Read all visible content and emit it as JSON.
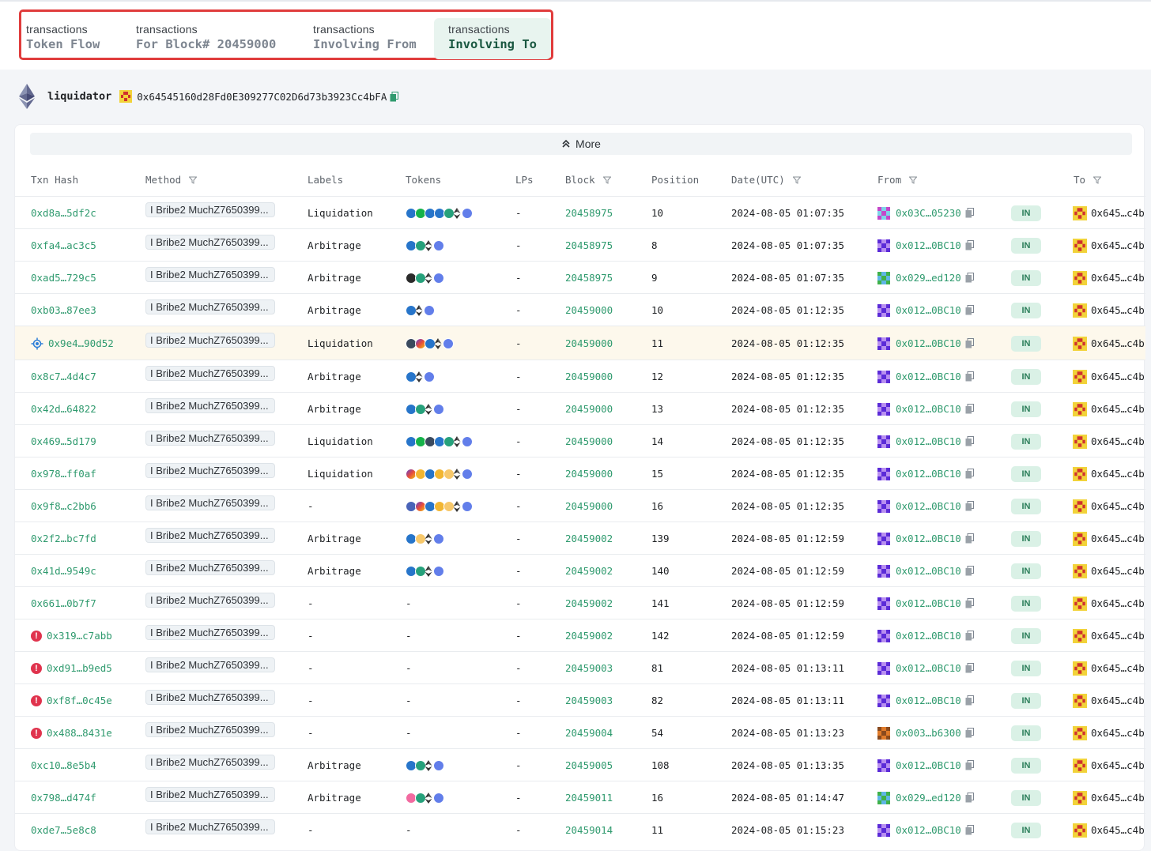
{
  "tabs": [
    {
      "line1": "transactions",
      "line2": "Token Flow"
    },
    {
      "line1": "transactions",
      "line2": "For Block# 20459000"
    },
    {
      "line1": "transactions",
      "line2": "Involving From"
    },
    {
      "line1": "transactions",
      "line2": "Involving To",
      "active": true
    }
  ],
  "account": {
    "label": "liquidator",
    "address": "0x64545160d28Fd0E309277C02D6d73b3923Cc4bFA",
    "chain_icon": "ethereum-icon"
  },
  "more_label": "More",
  "columns": [
    "Txn Hash",
    "Method",
    "Labels",
    "Tokens",
    "LPs",
    "Block",
    "Position",
    "Date(UTC)",
    "From",
    "To"
  ],
  "direction_label": "IN",
  "to_value": "0x645…c4b",
  "colors": {
    "accent_green": "#2f9a6e",
    "highlight_red": "#e03c3c",
    "alert_red": "#e0334d"
  },
  "rows": [
    {
      "hash": "0xd8a…5df2c",
      "method": "I Bribe2 MuchZ7650399...",
      "label": "Liquidation",
      "tokens": [
        "usdc",
        "green2",
        "usdc",
        "usdc",
        "usdt",
        "eth",
        "weth"
      ],
      "lps": "-",
      "block": "20458975",
      "position": "10",
      "date": "2024-08-05 01:07:35",
      "from": "0x03C…05230",
      "from_icon": "pink",
      "status": ""
    },
    {
      "hash": "0xfa4…ac3c5",
      "method": "I Bribe2 MuchZ7650399...",
      "label": "Arbitrage",
      "tokens": [
        "usdc",
        "usdt",
        "eth",
        "weth"
      ],
      "lps": "-",
      "block": "20458975",
      "position": "8",
      "date": "2024-08-05 01:07:35",
      "from": "0x012…0BC10",
      "from_icon": "purple",
      "status": ""
    },
    {
      "hash": "0xad5…729c5",
      "method": "I Bribe2 MuchZ7650399...",
      "label": "Arbitrage",
      "tokens": [
        "crv",
        "usdt",
        "eth",
        "weth"
      ],
      "lps": "-",
      "block": "20458975",
      "position": "9",
      "date": "2024-08-05 01:07:35",
      "from": "0x029…ed120",
      "from_icon": "green",
      "status": ""
    },
    {
      "hash": "0xb03…87ee3",
      "method": "I Bribe2 MuchZ7650399...",
      "label": "Arbitrage",
      "tokens": [
        "usdc",
        "eth",
        "weth"
      ],
      "lps": "-",
      "block": "20459000",
      "position": "10",
      "date": "2024-08-05 01:12:35",
      "from": "0x012…0BC10",
      "from_icon": "purple",
      "status": ""
    },
    {
      "hash": "0x9e4…90d52",
      "method": "I Bribe2 MuchZ7650399...",
      "label": "Liquidation",
      "tokens": [
        "euro",
        "multi",
        "usdc",
        "eth",
        "weth"
      ],
      "lps": "-",
      "block": "20459000",
      "position": "11",
      "date": "2024-08-05 01:12:35",
      "from": "0x012…0BC10",
      "from_icon": "purple",
      "status": "cross",
      "highlight": true
    },
    {
      "hash": "0x8c7…4d4c7",
      "method": "I Bribe2 MuchZ7650399...",
      "label": "Arbitrage",
      "tokens": [
        "usdc",
        "eth",
        "weth"
      ],
      "lps": "-",
      "block": "20459000",
      "position": "12",
      "date": "2024-08-05 01:12:35",
      "from": "0x012…0BC10",
      "from_icon": "purple",
      "status": ""
    },
    {
      "hash": "0x42d…64822",
      "method": "I Bribe2 MuchZ7650399...",
      "label": "Arbitrage",
      "tokens": [
        "usdc",
        "usdt",
        "eth",
        "weth"
      ],
      "lps": "-",
      "block": "20459000",
      "position": "13",
      "date": "2024-08-05 01:12:35",
      "from": "0x012…0BC10",
      "from_icon": "purple",
      "status": ""
    },
    {
      "hash": "0x469…5d179",
      "method": "I Bribe2 MuchZ7650399...",
      "label": "Liquidation",
      "tokens": [
        "usdc",
        "green2",
        "euro",
        "usdc",
        "usdt",
        "eth",
        "weth"
      ],
      "lps": "-",
      "block": "20459000",
      "position": "14",
      "date": "2024-08-05 01:12:35",
      "from": "0x012…0BC10",
      "from_icon": "purple",
      "status": ""
    },
    {
      "hash": "0x978…ff0af",
      "method": "I Bribe2 MuchZ7650399...",
      "label": "Liquidation",
      "tokens": [
        "multi",
        "gold",
        "usdc",
        "gold",
        "gold2",
        "eth",
        "weth"
      ],
      "lps": "-",
      "block": "20459000",
      "position": "15",
      "date": "2024-08-05 01:12:35",
      "from": "0x012…0BC10",
      "from_icon": "purple",
      "status": ""
    },
    {
      "hash": "0x9f8…c2bb6",
      "method": "I Bribe2 MuchZ7650399...",
      "label": "-",
      "tokens": [
        "blue2",
        "multi",
        "usdc",
        "gold",
        "gold2",
        "eth",
        "weth"
      ],
      "lps": "-",
      "block": "20459000",
      "position": "16",
      "date": "2024-08-05 01:12:35",
      "from": "0x012…0BC10",
      "from_icon": "purple",
      "status": ""
    },
    {
      "hash": "0x2f2…bc7fd",
      "method": "I Bribe2 MuchZ7650399...",
      "label": "Arbitrage",
      "tokens": [
        "usdc",
        "gold2",
        "eth",
        "weth"
      ],
      "lps": "-",
      "block": "20459002",
      "position": "139",
      "date": "2024-08-05 01:12:59",
      "from": "0x012…0BC10",
      "from_icon": "purple",
      "status": ""
    },
    {
      "hash": "0x41d…9549c",
      "method": "I Bribe2 MuchZ7650399...",
      "label": "Arbitrage",
      "tokens": [
        "usdc",
        "usdt",
        "eth",
        "weth"
      ],
      "lps": "-",
      "block": "20459002",
      "position": "140",
      "date": "2024-08-05 01:12:59",
      "from": "0x012…0BC10",
      "from_icon": "purple",
      "status": ""
    },
    {
      "hash": "0x661…0b7f7",
      "method": "I Bribe2 MuchZ7650399...",
      "label": "-",
      "tokens": [],
      "tokens_text": "-",
      "lps": "-",
      "block": "20459002",
      "position": "141",
      "date": "2024-08-05 01:12:59",
      "from": "0x012…0BC10",
      "from_icon": "purple",
      "status": ""
    },
    {
      "hash": "0x319…c7abb",
      "method": "I Bribe2 MuchZ7650399...",
      "label": "-",
      "tokens": [],
      "tokens_text": "-",
      "lps": "-",
      "block": "20459002",
      "position": "142",
      "date": "2024-08-05 01:12:59",
      "from": "0x012…0BC10",
      "from_icon": "purple",
      "status": "error"
    },
    {
      "hash": "0xd91…b9ed5",
      "method": "I Bribe2 MuchZ7650399...",
      "label": "-",
      "tokens": [],
      "tokens_text": "-",
      "lps": "-",
      "block": "20459003",
      "position": "81",
      "date": "2024-08-05 01:13:11",
      "from": "0x012…0BC10",
      "from_icon": "purple",
      "status": "error"
    },
    {
      "hash": "0xf8f…0c45e",
      "method": "I Bribe2 MuchZ7650399...",
      "label": "-",
      "tokens": [],
      "tokens_text": "-",
      "lps": "-",
      "block": "20459003",
      "position": "82",
      "date": "2024-08-05 01:13:11",
      "from": "0x012…0BC10",
      "from_icon": "purple",
      "status": "error"
    },
    {
      "hash": "0x488…8431e",
      "method": "I Bribe2 MuchZ7650399...",
      "label": "-",
      "tokens": [],
      "tokens_text": "-",
      "lps": "-",
      "block": "20459004",
      "position": "54",
      "date": "2024-08-05 01:13:23",
      "from": "0x003…b6300",
      "from_icon": "brown",
      "status": "error"
    },
    {
      "hash": "0xc10…8e5b4",
      "method": "I Bribe2 MuchZ7650399...",
      "label": "Arbitrage",
      "tokens": [
        "usdc",
        "usdt",
        "eth",
        "weth"
      ],
      "lps": "-",
      "block": "20459005",
      "position": "108",
      "date": "2024-08-05 01:13:35",
      "from": "0x012…0BC10",
      "from_icon": "purple",
      "status": ""
    },
    {
      "hash": "0x798…d474f",
      "method": "I Bribe2 MuchZ7650399...",
      "label": "Arbitrage",
      "tokens": [
        "pink",
        "usdt",
        "eth",
        "weth"
      ],
      "lps": "-",
      "block": "20459011",
      "position": "16",
      "date": "2024-08-05 01:14:47",
      "from": "0x029…ed120",
      "from_icon": "green",
      "status": ""
    },
    {
      "hash": "0xde7…5e8c8",
      "method": "I Bribe2 MuchZ7650399...",
      "label": "-",
      "tokens": [],
      "tokens_text": "-",
      "lps": "-",
      "block": "20459014",
      "position": "11",
      "date": "2024-08-05 01:15:23",
      "from": "0x012…0BC10",
      "from_icon": "purple",
      "status": ""
    }
  ]
}
